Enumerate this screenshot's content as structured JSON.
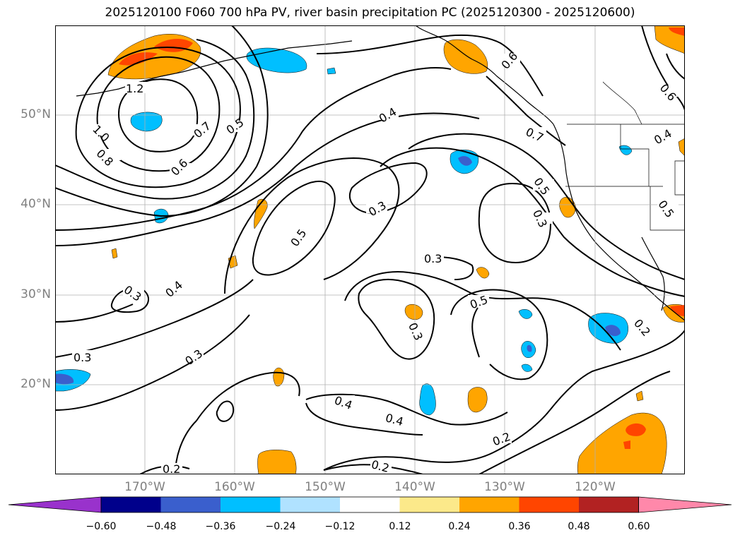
{
  "title": "2025120100 F060 700 hPa PV, river basin precipitation PC (2025120300 - 2025120600)",
  "lat_labels": [
    "50°N",
    "40°N",
    "30°N",
    "20°N"
  ],
  "lon_labels": [
    "170°W",
    "160°W",
    "150°W",
    "140°W",
    "130°W",
    "120°W"
  ],
  "colorbar": {
    "ticks": [
      "−0.60",
      "−0.48",
      "−0.36",
      "−0.24",
      "−0.12",
      "0.12",
      "0.24",
      "0.36",
      "0.48",
      "0.60"
    ],
    "colors": [
      "#9932cc",
      "#00008b",
      "#3a5fcd",
      "#00bfff",
      "#b0e2ff",
      "#ffffff",
      "#fce98a",
      "#ffa500",
      "#ff4500",
      "#b22222",
      "#ff88aa"
    ]
  },
  "contour_labels": {
    "c1": "1.2",
    "c2": "1.0",
    "c3": "0.8",
    "c4": "0.7",
    "c5": "0.6",
    "c6": "0.5",
    "c7": "0.4",
    "c8": "0.6",
    "c9": "0.6",
    "c10": "0.7",
    "c11": "0.5",
    "c12": "0.3",
    "c13": "0.4",
    "c14": "0.5",
    "c15": "0.3",
    "c16": "0.5",
    "c17": "0.3",
    "c18": "0.4",
    "c19": "0.3",
    "c20": "0.3",
    "c21": "0.3",
    "c22": "0.5",
    "c23": "0.3",
    "c24": "0.2",
    "c25": "0.4",
    "c26": "0.4",
    "c27": "0.2",
    "c28": "0.2",
    "c29": "0.2"
  }
}
